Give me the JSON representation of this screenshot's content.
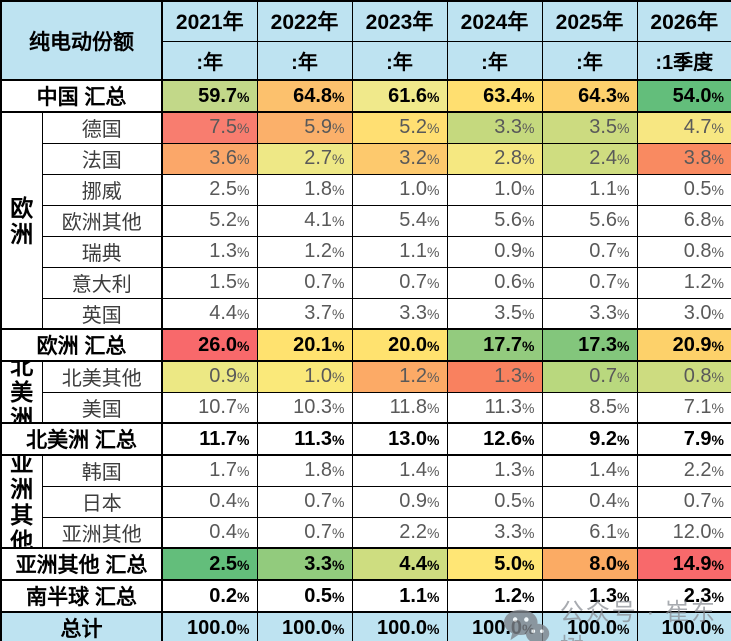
{
  "chart_data": {
    "type": "table",
    "title": "纯电动份额",
    "unit": "%",
    "columns": [
      {
        "year": "2021年",
        "period": ":年"
      },
      {
        "year": "2022年",
        "period": ":年"
      },
      {
        "year": "2023年",
        "period": ":年"
      },
      {
        "year": "2024年",
        "period": ":年"
      },
      {
        "year": "2025年",
        "period": ":年"
      },
      {
        "year": "2026年",
        "period": ":1季度"
      }
    ],
    "rows": [
      {
        "label": "中国 汇总",
        "type": "summary",
        "values": [
          59.7,
          64.8,
          61.6,
          63.4,
          64.3,
          54.0
        ],
        "cell_colors": [
          "#c2d889",
          "#fcc16d",
          "#f0e98b",
          "#ffdf70",
          "#fdd06c",
          "#63be7b"
        ]
      },
      {
        "group": "欧洲",
        "span": 7,
        "label": "德国",
        "type": "country",
        "values": [
          7.5,
          5.9,
          5.2,
          3.3,
          3.5,
          4.7
        ],
        "cell_colors": [
          "#f87d6f",
          "#fbb06a",
          "#ffdf72",
          "#c5d97e",
          "#ccdb80",
          "#f7e782"
        ]
      },
      {
        "label": "法国",
        "type": "country",
        "values": [
          3.6,
          2.7,
          3.2,
          2.8,
          2.4,
          3.8
        ],
        "cell_colors": [
          "#fba769",
          "#eee886",
          "#fdc96d",
          "#f5e881",
          "#cfdd80",
          "#f98a61"
        ]
      },
      {
        "label": "挪威",
        "type": "country",
        "values": [
          2.5,
          1.8,
          1.0,
          1.0,
          1.1,
          0.5
        ],
        "cell_colors": null
      },
      {
        "label": "欧洲其他",
        "type": "country",
        "values": [
          5.2,
          4.1,
          5.4,
          5.6,
          5.6,
          6.8
        ],
        "cell_colors": null
      },
      {
        "label": "瑞典",
        "type": "country",
        "values": [
          1.3,
          1.2,
          1.1,
          0.9,
          0.7,
          0.8
        ],
        "cell_colors": null
      },
      {
        "label": "意大利",
        "type": "country",
        "values": [
          1.5,
          0.7,
          0.7,
          0.6,
          0.7,
          1.2
        ],
        "cell_colors": null
      },
      {
        "label": "英国",
        "type": "country",
        "values": [
          4.4,
          3.7,
          3.3,
          3.5,
          3.3,
          3.0
        ],
        "cell_colors": null
      },
      {
        "label": "欧洲 汇总",
        "type": "summary",
        "values": [
          26.0,
          20.1,
          20.0,
          17.7,
          17.3,
          20.9
        ],
        "cell_colors": [
          "#f8696b",
          "#ffe26f",
          "#ffe26f",
          "#93cb7e",
          "#83c67c",
          "#fdd16a"
        ]
      },
      {
        "group": "北美洲",
        "span": 2,
        "label": "北美其他",
        "type": "country",
        "values": [
          0.9,
          1.0,
          1.2,
          1.3,
          0.7,
          0.8
        ],
        "cell_colors": [
          "#ece884",
          "#fae97a",
          "#fcaa66",
          "#f9815f",
          "#b9d87e",
          "#cddc80"
        ]
      },
      {
        "label": "美国",
        "type": "country",
        "values": [
          10.7,
          10.3,
          11.8,
          11.3,
          8.5,
          7.1
        ],
        "cell_colors": null
      },
      {
        "label": "北美洲 汇总",
        "type": "summary",
        "values": [
          11.7,
          11.3,
          13.0,
          12.6,
          9.2,
          7.9
        ],
        "cell_colors": null
      },
      {
        "group": "亚洲其他",
        "span": 3,
        "label": "韩国",
        "type": "country",
        "values": [
          1.7,
          1.8,
          1.4,
          1.3,
          1.4,
          2.2
        ],
        "cell_colors": null
      },
      {
        "label": "日本",
        "type": "country",
        "values": [
          0.4,
          0.7,
          0.9,
          0.5,
          0.4,
          0.7
        ],
        "cell_colors": null
      },
      {
        "label": "亚洲其他",
        "type": "country",
        "values": [
          0.4,
          0.7,
          2.2,
          3.3,
          6.1,
          12.0
        ],
        "cell_colors": null
      },
      {
        "label": "亚洲其他 汇总",
        "type": "summary",
        "values": [
          2.5,
          3.3,
          4.4,
          5.0,
          8.0,
          14.9
        ],
        "cell_colors": [
          "#63be7b",
          "#92cb7d",
          "#cedd80",
          "#ffe675",
          "#fbab64",
          "#f8696b"
        ]
      },
      {
        "label": "南半球 汇总",
        "type": "summary",
        "values": [
          0.2,
          0.5,
          1.1,
          1.2,
          1.3,
          2.3
        ],
        "cell_colors": null
      },
      {
        "label": "总计",
        "type": "total",
        "values": [
          100.0,
          100.0,
          100.0,
          100.0,
          100.0,
          100.0
        ],
        "cell_colors": null
      }
    ]
  },
  "watermark": {
    "text": "公众号 · 崔东树",
    "icon": "wechat-chat-bubbles-icon"
  },
  "palette": {
    "header_bg": "#bee3f1",
    "total_row_bg": "#bee3f1",
    "grid_line": "#000000",
    "country_text": "#595959",
    "summary_text": "#000000",
    "scale_low_green": "#63be7b",
    "scale_mid_yellow": "#ffeb84",
    "scale_high_red": "#f8696b",
    "watermark_gray": "#868b91"
  }
}
